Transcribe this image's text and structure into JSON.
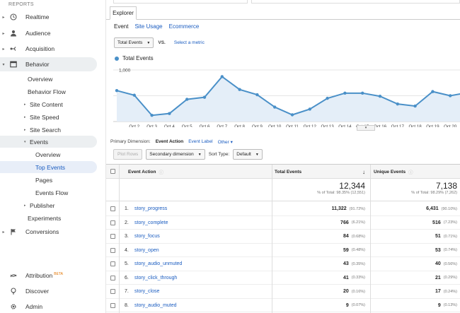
{
  "sidebar": {
    "section": "REPORTS",
    "items": [
      {
        "label": "Realtime",
        "icon": "clock-icon"
      },
      {
        "label": "Audience",
        "icon": "person-icon"
      },
      {
        "label": "Acquisition",
        "icon": "acquisition-icon"
      },
      {
        "label": "Behavior",
        "icon": "behavior-icon"
      },
      {
        "label": "Conversions",
        "icon": "flag-icon"
      }
    ],
    "behavior_sub": [
      "Overview",
      "Behavior Flow",
      "Site Content",
      "Site Speed",
      "Site Search",
      "Events",
      "Experiments"
    ],
    "events_sub": [
      "Overview",
      "Top Events",
      "Pages",
      "Events Flow",
      "Publisher"
    ],
    "bottom": [
      {
        "label": "Attribution",
        "badge": "BETA",
        "icon": "attribution-icon"
      },
      {
        "label": "Discover",
        "icon": "lightbulb-icon"
      },
      {
        "label": "Admin",
        "icon": "gear-icon"
      }
    ]
  },
  "explorer": {
    "tab": "Explorer",
    "subtabs": [
      "Event",
      "Site Usage",
      "Ecommerce"
    ],
    "metric_select": "Total Events",
    "vs": "VS.",
    "select_metric": "Select a metric",
    "legend": "Total Events",
    "series_color": "#4a90c8"
  },
  "chart_data": {
    "type": "area",
    "series": [
      {
        "name": "Total Events",
        "values": [
          600,
          510,
          120,
          155,
          430,
          470,
          870,
          620,
          520,
          280,
          130,
          240,
          450,
          550,
          550,
          490,
          340,
          300,
          580,
          500,
          560
        ]
      }
    ],
    "x_ticks": [
      "Oct 2",
      "Oct 3",
      "Oct 4",
      "Oct 5",
      "Oct 6",
      "Oct 7",
      "Oct 8",
      "Oct 9",
      "Oct 10",
      "Oct 11",
      "Oct 12",
      "Oct 13",
      "Oct 14",
      "Oct 15",
      "Oct 16",
      "Oct 17",
      "Oct 18",
      "Oct 19",
      "Oct 20"
    ],
    "y_ticks": [
      "1,000",
      "500"
    ],
    "ylim": [
      0,
      1150
    ],
    "grid": true
  },
  "primary": {
    "label": "Primary Dimension:",
    "current": "Event Action",
    "option": "Event Label",
    "other": "Other"
  },
  "toolbar": {
    "plot_rows": "Plot Rows",
    "secondary": "Secondary dimension",
    "sort_label": "Sort Type:",
    "sort_value": "Default"
  },
  "table": {
    "headers": {
      "action": "Event Action",
      "total": "Total Events",
      "unique": "Unique Events"
    },
    "totals": {
      "total": "12,344",
      "total_pct": "% of Total: 98.35% (12,551)",
      "unique": "7,138",
      "unique_pct": "% of Total: 98.29% (7,262)"
    },
    "rows": [
      {
        "n": "1.",
        "name": "story_progress",
        "total": "11,322",
        "tp": "(91.72%)",
        "unique": "6,431",
        "up": "(90.10%)"
      },
      {
        "n": "2.",
        "name": "story_complete",
        "total": "766",
        "tp": "(6.21%)",
        "unique": "516",
        "up": "(7.23%)"
      },
      {
        "n": "3.",
        "name": "story_focus",
        "total": "84",
        "tp": "(0.68%)",
        "unique": "51",
        "up": "(0.71%)"
      },
      {
        "n": "4.",
        "name": "story_open",
        "total": "59",
        "tp": "(0.48%)",
        "unique": "53",
        "up": "(0.74%)"
      },
      {
        "n": "5.",
        "name": "story_audio_unmuted",
        "total": "43",
        "tp": "(0.35%)",
        "unique": "40",
        "up": "(0.56%)"
      },
      {
        "n": "6.",
        "name": "story_click_through",
        "total": "41",
        "tp": "(0.33%)",
        "unique": "21",
        "up": "(0.29%)"
      },
      {
        "n": "7.",
        "name": "story_close",
        "total": "20",
        "tp": "(0.16%)",
        "unique": "17",
        "up": "(0.24%)"
      },
      {
        "n": "8.",
        "name": "story_audio_muted",
        "total": "9",
        "tp": "(0.07%)",
        "unique": "9",
        "up": "(0.13%)"
      }
    ]
  }
}
